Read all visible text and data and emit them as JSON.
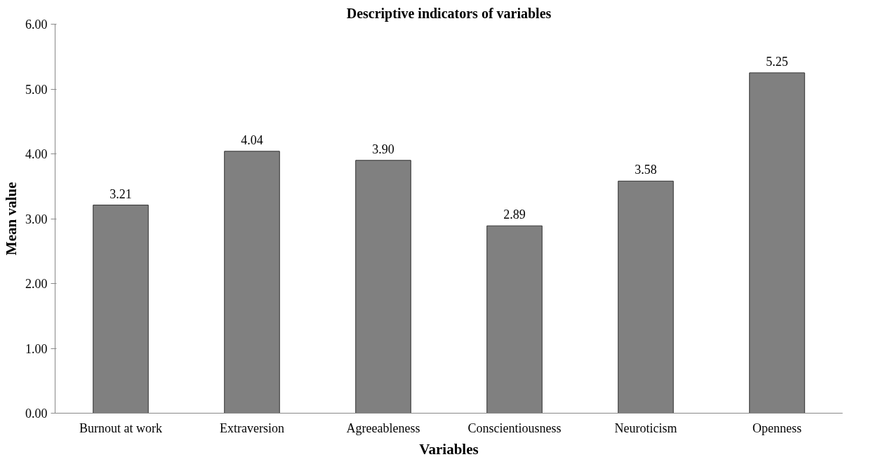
{
  "chart_data": {
    "type": "bar",
    "title": "Descriptive indicators of variables",
    "xlabel": "Variables",
    "ylabel": "Mean value",
    "categories": [
      "Burnout at work",
      "Extraversion",
      "Agreeableness",
      "Conscientiousness",
      "Neuroticism",
      "Openness"
    ],
    "values": [
      3.21,
      4.04,
      3.9,
      2.89,
      3.58,
      5.25
    ],
    "color": "#808080",
    "ylim": [
      0,
      6
    ],
    "yticks": [
      {
        "value": 0,
        "label": "0.00"
      },
      {
        "value": 1,
        "label": "1.00"
      },
      {
        "value": 2,
        "label": "2.00"
      },
      {
        "value": 3,
        "label": "3.00"
      },
      {
        "value": 4,
        "label": "4.00"
      },
      {
        "value": 5,
        "label": "5.00"
      },
      {
        "value": 6,
        "label": "6.00"
      }
    ],
    "value_labels": [
      "3.21",
      "4.04",
      "3.90",
      "2.89",
      "3.58",
      "5.25"
    ],
    "grid": false
  }
}
